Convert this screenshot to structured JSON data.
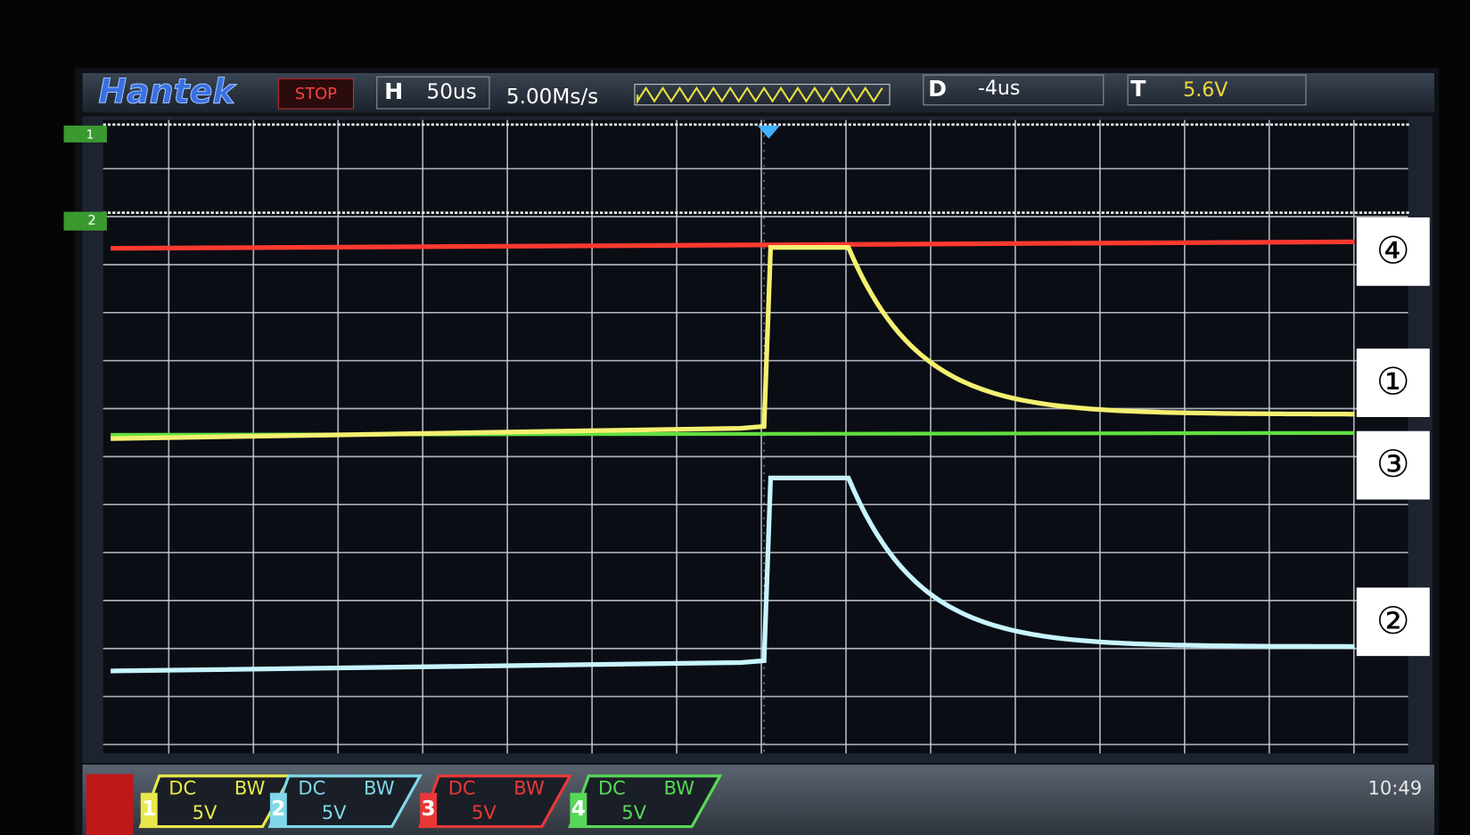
{
  "header": {
    "brand": "Hantek",
    "status": "STOP",
    "horizontal": {
      "label": "H",
      "value": "50us"
    },
    "sample_rate": "5.00Ms/s",
    "delay": {
      "label": "D",
      "value": "-4us"
    },
    "trigger": {
      "label": "T",
      "value": "5.6V"
    }
  },
  "channel_markers": [
    "1",
    "2"
  ],
  "annotations": [
    "④",
    "①",
    "③",
    "②"
  ],
  "channels": [
    {
      "number": "1",
      "coupling": "DC",
      "bandwidth": "BW",
      "scale": "5V"
    },
    {
      "number": "2",
      "coupling": "DC",
      "bandwidth": "BW",
      "scale": "5V"
    },
    {
      "number": "3",
      "coupling": "DC",
      "bandwidth": "BW",
      "scale": "5V"
    },
    {
      "number": "4",
      "coupling": "DC",
      "bandwidth": "BW",
      "scale": "5V"
    }
  ],
  "clock": "10:49"
}
